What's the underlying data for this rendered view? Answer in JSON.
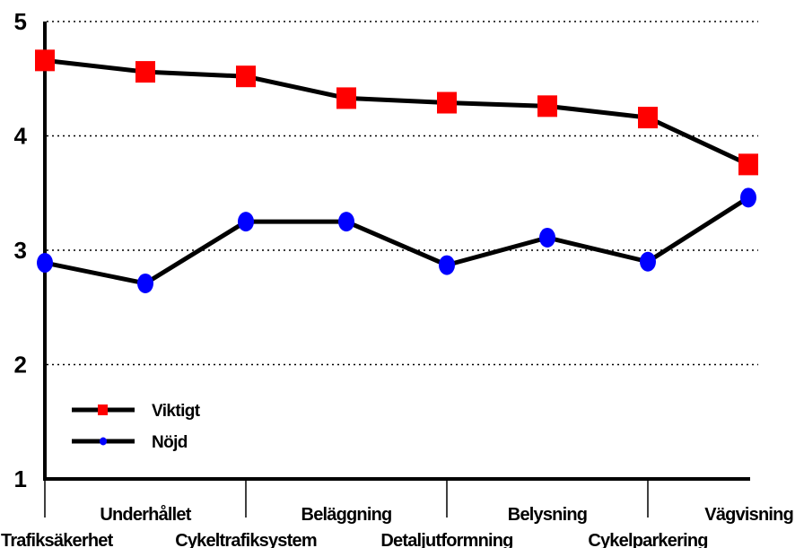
{
  "chart_data": {
    "type": "line",
    "categories": [
      "Trafiksäkerhet",
      "Underhållet",
      "Cykeltrafiksystem",
      "Beläggning",
      "Detaljutformning",
      "Belysning",
      "Cykelparkering",
      "Vägvisning"
    ],
    "series": [
      {
        "name": "Viktigt",
        "values": [
          4.66,
          4.56,
          4.52,
          4.33,
          4.29,
          4.26,
          4.16,
          3.75
        ],
        "color": "#ff0000",
        "marker": "square"
      },
      {
        "name": "Nöjd",
        "values": [
          2.89,
          2.71,
          3.25,
          3.25,
          2.87,
          3.11,
          2.9,
          3.46
        ],
        "color": "#0000ff",
        "marker": "circle"
      }
    ],
    "yticks": [
      "1",
      "2",
      "3",
      "4",
      "5"
    ],
    "ylim": [
      1,
      5
    ],
    "title": "",
    "xlabel": "",
    "ylabel": "",
    "grid": "horizontal dotted",
    "legend_position": "bottom-left",
    "line_color": "#000000"
  }
}
